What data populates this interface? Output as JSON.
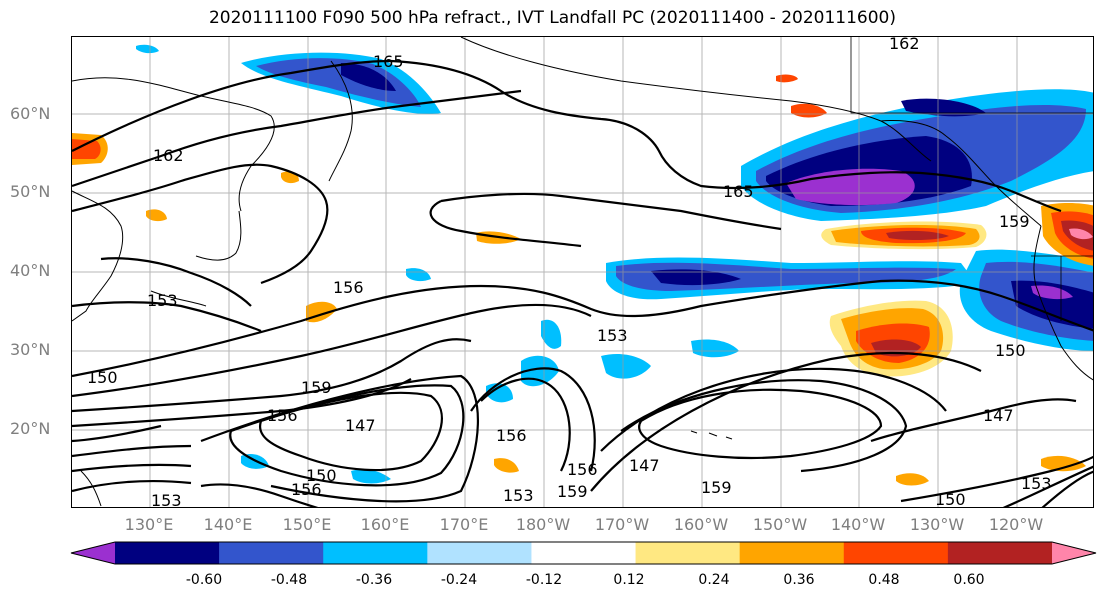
{
  "title": "2020111100 F090 500 hPa refract., IVT Landfall PC (2020111400 - 2020111600)",
  "lat_labels": [
    "60°N",
    "50°N",
    "40°N",
    "30°N",
    "20°N"
  ],
  "lon_labels": [
    "130°E",
    "140°E",
    "150°E",
    "160°E",
    "170°E",
    "180°W",
    "170°W",
    "160°W",
    "150°W",
    "140°W",
    "130°W",
    "120°W"
  ],
  "contour_labels": [
    "165",
    "162",
    "162",
    "165",
    "159",
    "156",
    "153",
    "153",
    "150",
    "150",
    "156",
    "159",
    "147",
    "156",
    "150",
    "156",
    "153",
    "147",
    "159",
    "156",
    "159",
    "147",
    "150",
    "153",
    "153"
  ],
  "colorbar": {
    "colors": [
      "#9b30d0",
      "#000080",
      "#3355cc",
      "#00bfff",
      "#b0e2ff",
      "#ffffff",
      "#ffe882",
      "#ffa500",
      "#ff4500",
      "#b22222",
      "#ff85aa"
    ],
    "tick_labels": [
      "-0.60",
      "-0.48",
      "-0.36",
      "-0.24",
      "-0.12",
      "0.12",
      "0.24",
      "0.36",
      "0.48",
      "0.60"
    ]
  }
}
